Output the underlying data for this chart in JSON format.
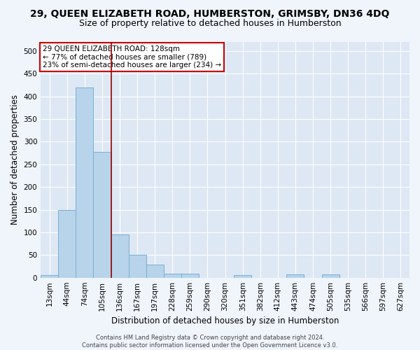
{
  "title": "29, QUEEN ELIZABETH ROAD, HUMBERSTON, GRIMSBY, DN36 4DQ",
  "subtitle": "Size of property relative to detached houses in Humberston",
  "xlabel": "Distribution of detached houses by size in Humberston",
  "ylabel": "Number of detached properties",
  "categories": [
    "13sqm",
    "44sqm",
    "74sqm",
    "105sqm",
    "136sqm",
    "167sqm",
    "197sqm",
    "228sqm",
    "259sqm",
    "290sqm",
    "320sqm",
    "351sqm",
    "382sqm",
    "412sqm",
    "443sqm",
    "474sqm",
    "505sqm",
    "535sqm",
    "566sqm",
    "597sqm",
    "627sqm"
  ],
  "values": [
    5,
    150,
    420,
    278,
    95,
    50,
    29,
    9,
    9,
    0,
    0,
    5,
    0,
    0,
    8,
    0,
    8,
    0,
    0,
    0,
    0
  ],
  "bar_color": "#b8d4ea",
  "bar_edge_color": "#7aaed4",
  "background_color": "#dde8f4",
  "grid_color": "#ffffff",
  "red_line_index": 4,
  "annotation_line1": "29 QUEEN ELIZABETH ROAD: 128sqm",
  "annotation_line2": "← 77% of detached houses are smaller (789)",
  "annotation_line3": "23% of semi-detached houses are larger (234) →",
  "annotation_box_color": "#ffffff",
  "annotation_box_edge_color": "#cc0000",
  "footer_text": "Contains HM Land Registry data © Crown copyright and database right 2024.\nContains public sector information licensed under the Open Government Licence v3.0.",
  "ylim": [
    0,
    520
  ],
  "yticks": [
    0,
    50,
    100,
    150,
    200,
    250,
    300,
    350,
    400,
    450,
    500
  ],
  "title_fontsize": 10,
  "subtitle_fontsize": 9,
  "axis_label_fontsize": 8.5,
  "tick_fontsize": 7.5,
  "annotation_fontsize": 7.5,
  "footer_fontsize": 6,
  "fig_bg_color": "#f0f5fc"
}
